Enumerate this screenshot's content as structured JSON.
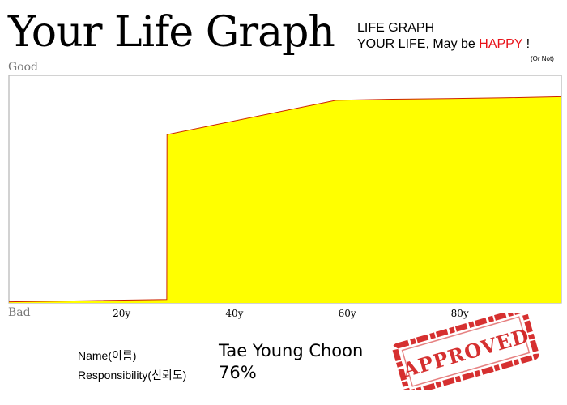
{
  "header": {
    "title": "Your Life Graph",
    "tagline_line1": "LIFE GRAPH",
    "tagline_line2_prefix": "YOUR LIFE, May be ",
    "tagline_line2_happy": "HAPPY",
    "tagline_line2_suffix": " !",
    "or_not": "(Or Not)"
  },
  "chart_data": {
    "type": "area",
    "y_top_label": "Good",
    "y_bottom_label": "Bad",
    "x_tick_labels": [
      {
        "label": "20y",
        "value": 20
      },
      {
        "label": "40y",
        "value": 40
      },
      {
        "label": "60y",
        "value": 60
      },
      {
        "label": "80y",
        "value": 80
      }
    ],
    "x": [
      0,
      14,
      28,
      28.05,
      58,
      68,
      78,
      88,
      98
    ],
    "y": [
      0.5,
      1.0,
      1.5,
      74,
      89,
      89.5,
      89.8,
      90.1,
      90.6
    ],
    "xlim": [
      0,
      98
    ],
    "ylim": [
      0,
      100
    ],
    "fill_color": "#ffff00",
    "line_color": "#cc2200",
    "grid": false,
    "legend": "none"
  },
  "info": {
    "name_label": "Name(이름)",
    "name_value": "Tae Young Choon",
    "responsibility_label": "Responsibility(신뢰도)",
    "responsibility_value": "76%"
  },
  "stamp": {
    "text": "APPROVED",
    "color": "#d11a1a"
  }
}
